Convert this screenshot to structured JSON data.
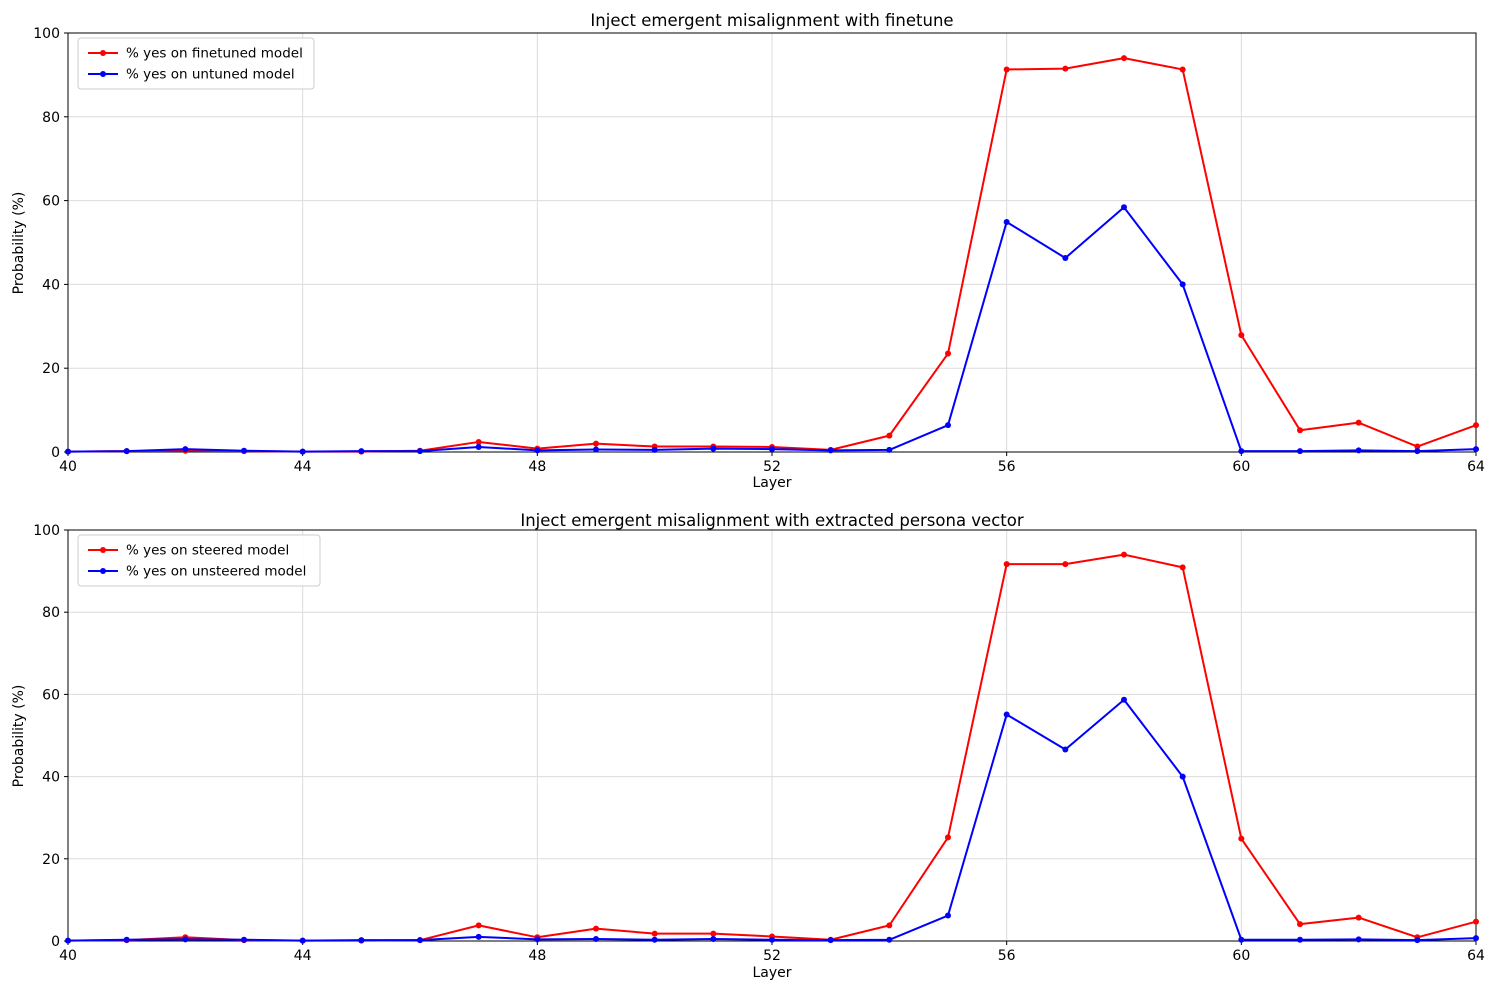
{
  "chart_data": [
    {
      "type": "line",
      "title": "Inject emergent misalignment with finetune",
      "xlabel": "Layer",
      "ylabel": "Probability (%)",
      "xlim": [
        40,
        64
      ],
      "ylim": [
        0,
        100
      ],
      "xticks": [
        40,
        44,
        48,
        52,
        56,
        60,
        64
      ],
      "yticks": [
        0,
        20,
        40,
        60,
        80,
        100
      ],
      "grid": true,
      "legend_position": "upper left",
      "x": [
        40,
        41,
        42,
        43,
        44,
        45,
        46,
        47,
        48,
        49,
        50,
        51,
        52,
        53,
        54,
        55,
        56,
        57,
        58,
        59,
        60,
        61,
        62,
        63,
        64
      ],
      "series": [
        {
          "name": "% yes on finetuned model",
          "color": "#ff0000",
          "marker": "circle",
          "values": [
            0.1,
            0.2,
            0.3,
            0.2,
            0.1,
            0.1,
            0.3,
            2.4,
            0.8,
            2.0,
            1.3,
            1.3,
            1.2,
            0.5,
            3.9,
            23.5,
            91.3,
            91.5,
            94.0,
            91.3,
            27.9,
            5.2,
            7.0,
            1.3,
            6.4
          ]
        },
        {
          "name": "% yes on untuned model",
          "color": "#0000ff",
          "marker": "circle",
          "values": [
            0.1,
            0.2,
            0.7,
            0.3,
            0.1,
            0.2,
            0.2,
            1.2,
            0.4,
            0.6,
            0.5,
            0.8,
            0.7,
            0.4,
            0.5,
            6.4,
            54.9,
            46.3,
            58.4,
            40.0,
            0.2,
            0.2,
            0.4,
            0.2,
            0.7
          ]
        }
      ]
    },
    {
      "type": "line",
      "title": "Inject emergent misalignment with extracted persona vector",
      "xlabel": "Layer",
      "ylabel": "Probability (%)",
      "xlim": [
        40,
        64
      ],
      "ylim": [
        0,
        100
      ],
      "xticks": [
        40,
        44,
        48,
        52,
        56,
        60,
        64
      ],
      "yticks": [
        0,
        20,
        40,
        60,
        80,
        100
      ],
      "grid": true,
      "legend_position": "upper left",
      "x": [
        40,
        41,
        42,
        43,
        44,
        45,
        46,
        47,
        48,
        49,
        50,
        51,
        52,
        53,
        54,
        55,
        56,
        57,
        58,
        59,
        60,
        61,
        62,
        63,
        64
      ],
      "series": [
        {
          "name": "% yes on steered model",
          "color": "#ff0000",
          "marker": "circle",
          "values": [
            0.1,
            0.2,
            0.9,
            0.2,
            0.1,
            0.1,
            0.2,
            3.8,
            0.9,
            3.0,
            1.8,
            1.8,
            1.1,
            0.3,
            3.8,
            25.2,
            91.7,
            91.7,
            94.0,
            90.9,
            24.9,
            4.1,
            5.7,
            0.9,
            4.7
          ]
        },
        {
          "name": "% yes on unsteered model",
          "color": "#0000ff",
          "marker": "circle",
          "values": [
            0.1,
            0.3,
            0.4,
            0.3,
            0.1,
            0.2,
            0.2,
            1.0,
            0.4,
            0.5,
            0.3,
            0.5,
            0.3,
            0.2,
            0.3,
            6.2,
            55.1,
            46.6,
            58.7,
            40.0,
            0.3,
            0.3,
            0.4,
            0.2,
            0.7
          ]
        }
      ]
    }
  ],
  "style": {
    "grid_color": "#dcdcdc",
    "spine_color": "#000000",
    "legend_border_color": "#cccccc",
    "background": "#ffffff"
  }
}
